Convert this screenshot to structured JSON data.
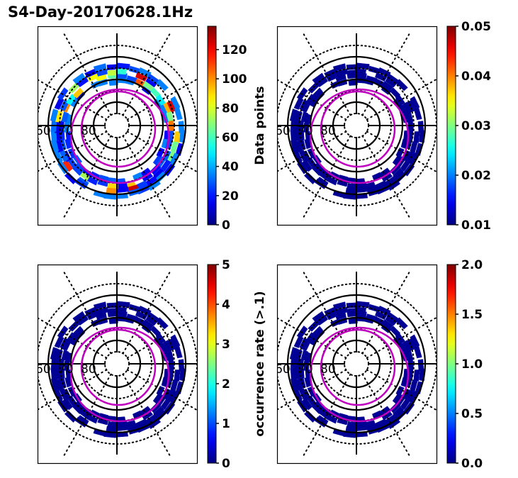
{
  "title": "S4-Day-20170628.1Hz",
  "colors": {
    "grid": "#000000",
    "oval": "#c000c0",
    "low": "#00008f"
  },
  "chart_data": [
    {
      "type": "heatmap",
      "projection": "polar",
      "panel": "top-left",
      "colorbar": {
        "label": "Data points",
        "range": [
          0,
          136
        ],
        "ticks": [
          "0",
          "20",
          "40",
          "60",
          "80",
          "100",
          "120"
        ],
        "tick_values": [
          0,
          20,
          40,
          60,
          80,
          100,
          120
        ],
        "colormap": "jet"
      },
      "lat_labels": [
        "60",
        "70",
        "80"
      ],
      "ring_values": {
        "mode": "counts",
        "typical": 40,
        "max": 130
      }
    },
    {
      "type": "heatmap",
      "projection": "polar",
      "panel": "top-right",
      "colorbar": {
        "label": "mean S4",
        "range": [
          0.01,
          0.05
        ],
        "ticks": [
          "0.01",
          "0.02",
          "0.03",
          "0.04",
          "0.05"
        ],
        "tick_values": [
          0.01,
          0.02,
          0.03,
          0.04,
          0.05
        ],
        "colormap": "jet"
      },
      "lat_labels": [
        "60",
        "70",
        "80"
      ],
      "ring_values": {
        "mode": "uniform",
        "typical": 0.01
      }
    },
    {
      "type": "heatmap",
      "projection": "polar",
      "panel": "bottom-left",
      "colorbar": {
        "label": "occurrence rate (>.1)",
        "range": [
          0,
          5
        ],
        "ticks": [
          "0",
          "1",
          "2",
          "3",
          "4",
          "5"
        ],
        "tick_values": [
          0,
          1,
          2,
          3,
          4,
          5
        ],
        "colormap": "jet"
      },
      "lat_labels": [
        "60",
        "70",
        "80"
      ],
      "ring_values": {
        "mode": "uniform",
        "typical": 0
      }
    },
    {
      "type": "heatmap",
      "projection": "polar",
      "panel": "bottom-right",
      "colorbar": {
        "label": "occurrence rate (>.15)",
        "range": [
          0.0,
          2.0
        ],
        "ticks": [
          "0.0",
          "0.5",
          "1.0",
          "1.5",
          "2.0"
        ],
        "tick_values": [
          0.0,
          0.5,
          1.0,
          1.5,
          2.0
        ],
        "colormap": "jet"
      },
      "lat_labels": [
        "60",
        "70",
        "80"
      ],
      "ring_values": {
        "mode": "uniform",
        "typical": 0
      }
    }
  ]
}
